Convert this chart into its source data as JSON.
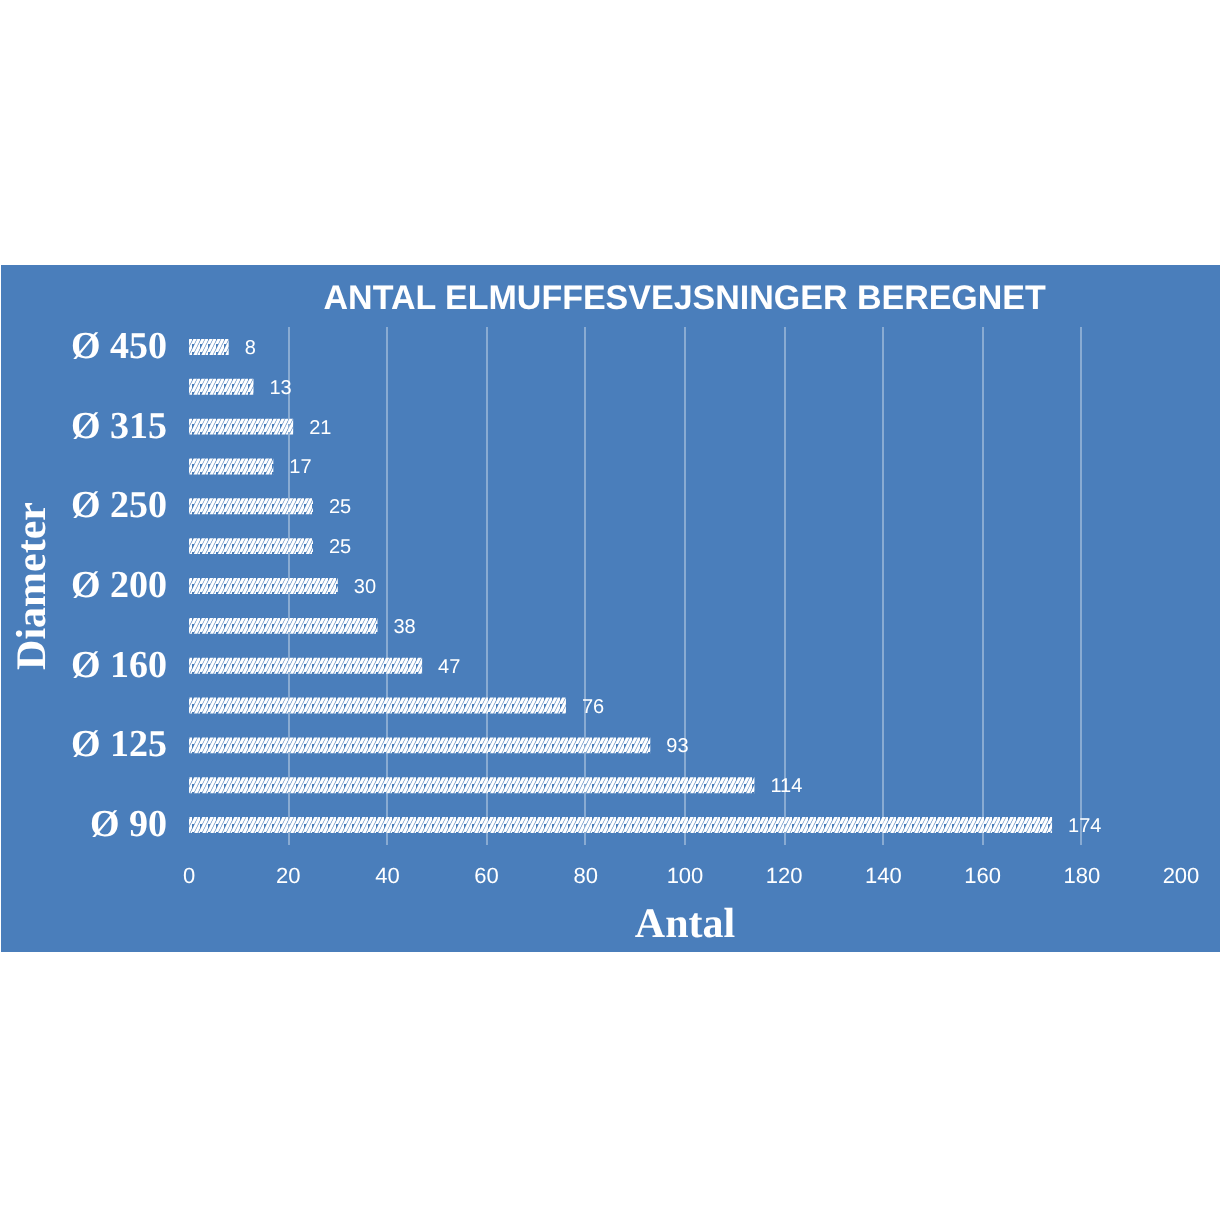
{
  "chart_data": {
    "type": "bar",
    "orientation": "horizontal",
    "title": "ANTAL ELMUFFESVEJSNINGER BEREGNET",
    "xlabel": "Antal",
    "ylabel": "Diameter",
    "categories": [
      "Ø 450",
      null,
      "Ø 315",
      null,
      "Ø 250",
      null,
      "Ø 200",
      null,
      "Ø 160",
      null,
      "Ø 125",
      null,
      "Ø 90"
    ],
    "values": [
      8,
      13,
      21,
      17,
      25,
      25,
      30,
      38,
      47,
      76,
      93,
      114,
      174
    ],
    "color": "#ffffff",
    "xlim": [
      0,
      200
    ],
    "xticks": [
      0,
      20,
      40,
      60,
      80,
      100,
      120,
      140,
      160,
      180,
      200
    ],
    "grid": "x",
    "data_labels": true
  }
}
